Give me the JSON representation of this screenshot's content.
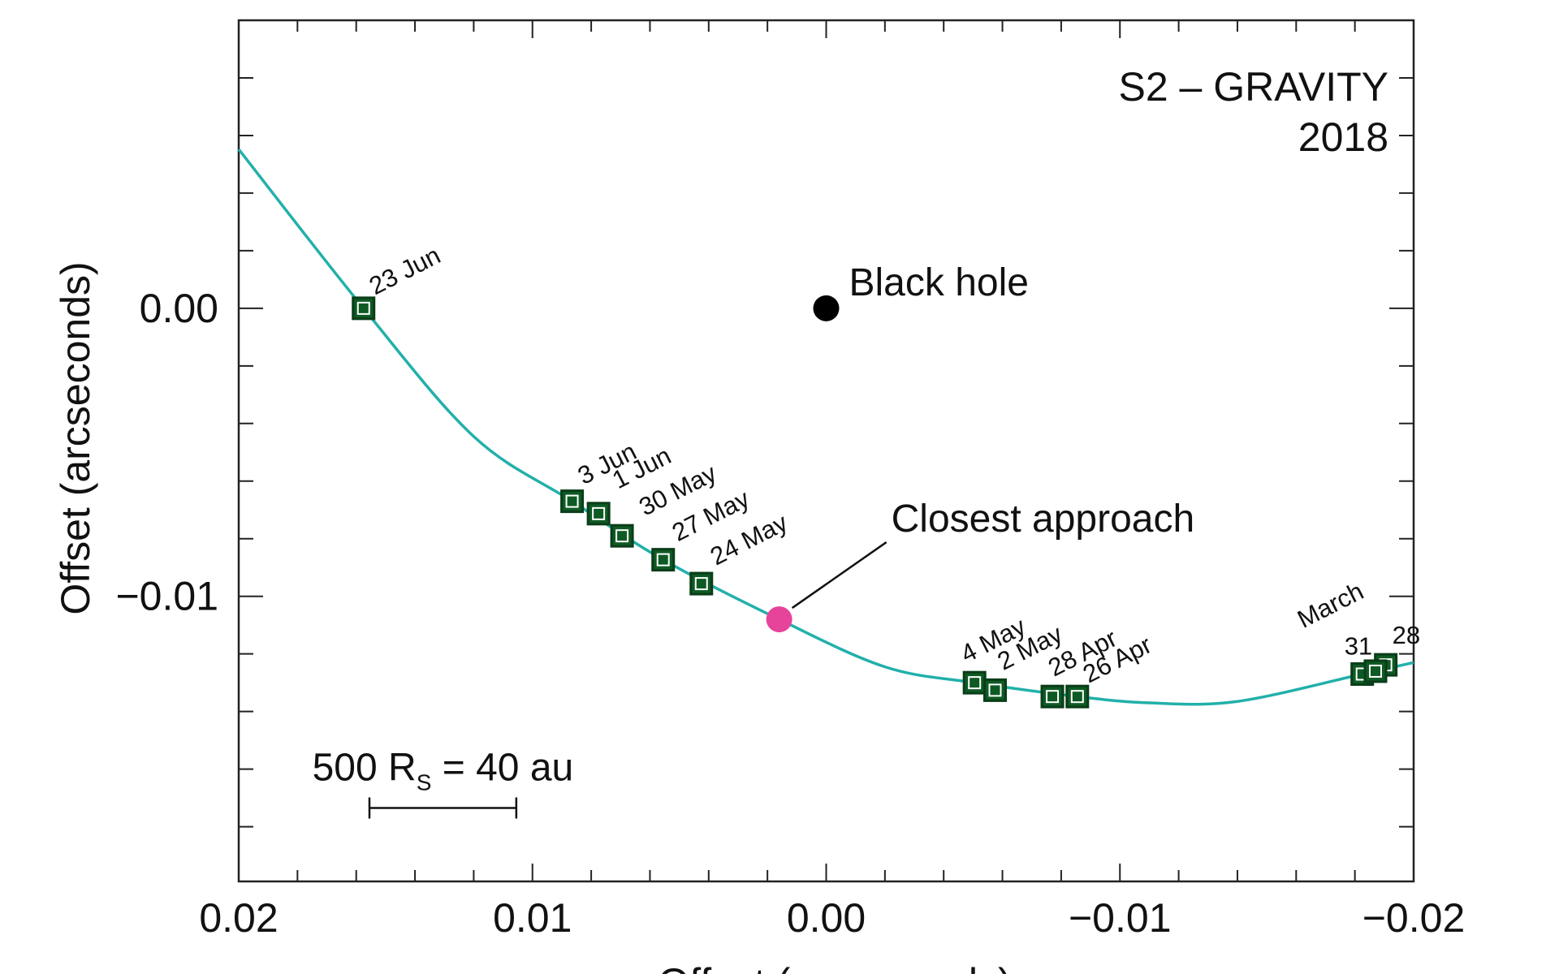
{
  "chart_data": {
    "type": "scatter",
    "title": "S2 – GRAVITY",
    "subtitle": "2018",
    "xlabel": "Offset (arcseconds)",
    "ylabel": "Offset (arcseconds)",
    "xlim": [
      0.02,
      -0.02
    ],
    "ylim": [
      -0.0199,
      0.01
    ],
    "x_inverted": true,
    "grid": false,
    "x_ticks": [
      {
        "value": 0.02,
        "label": "0.02"
      },
      {
        "value": 0.01,
        "label": "0.01"
      },
      {
        "value": 0.0,
        "label": "0.00"
      },
      {
        "value": -0.01,
        "label": "−0.01"
      },
      {
        "value": -0.02,
        "label": "−0.02"
      }
    ],
    "y_ticks": [
      {
        "value": 0.0,
        "label": "0.00"
      },
      {
        "value": -0.01,
        "label": "−0.01"
      }
    ],
    "orbit_color": "#22b0aa",
    "orbit": [
      {
        "x": 0.02,
        "y": 0.00552
      },
      {
        "x": 0.019,
        "y": 0.0033
      },
      {
        "x": 0.018,
        "y": 0.00125
      },
      {
        "x": 0.01575,
        "y": 0.0
      },
      {
        "x": 0.016,
        "y": -0.0024
      },
      {
        "x": 0.014,
        "y": -0.0055
      },
      {
        "x": 0.012,
        "y": -0.008
      },
      {
        "x": 0.01,
        "y": -0.0099
      },
      {
        "x": 0.008,
        "y": -0.0112
      },
      {
        "x": 0.006,
        "y": -0.01205
      },
      {
        "x": 0.004,
        "y": -0.01275
      },
      {
        "x": 0.0016,
        "y": -0.0108
      },
      {
        "x": 0.0,
        "y": -0.0118
      },
      {
        "x": -0.0025,
        "y": -0.0128
      },
      {
        "x": -0.005,
        "y": -0.0132
      },
      {
        "x": -0.008,
        "y": -0.0135
      },
      {
        "x": -0.011,
        "y": -0.0137
      },
      {
        "x": -0.014,
        "y": -0.01365
      },
      {
        "x": -0.017,
        "y": -0.0132
      },
      {
        "x": -0.02,
        "y": -0.0123
      }
    ],
    "observations": [
      {
        "date": "23 Jun",
        "x": 0.01575,
        "y": 0.0
      },
      {
        "date": "3 Jun",
        "x": 0.00865,
        "y": -0.0067
      },
      {
        "date": "1 Jun",
        "x": 0.00775,
        "y": -0.00713
      },
      {
        "date": "30 May",
        "x": 0.00695,
        "y": -0.0079
      },
      {
        "date": "27 May",
        "x": 0.00555,
        "y": -0.00873
      },
      {
        "date": "24 May",
        "x": 0.00425,
        "y": -0.00956
      },
      {
        "date": "4 May",
        "x": -0.00505,
        "y": -0.013
      },
      {
        "date": "2 May",
        "x": -0.00575,
        "y": -0.01326
      },
      {
        "date": "28 Apr",
        "x": -0.0077,
        "y": -0.01348
      },
      {
        "date": "26 Apr",
        "x": -0.00855,
        "y": -0.01348
      },
      {
        "date": "31",
        "x": -0.01825,
        "y": -0.0127
      },
      {
        "date": "28",
        "x": -0.01905,
        "y": -0.01238
      },
      {
        "date": "",
        "x": -0.0187,
        "y": -0.0126
      }
    ],
    "observation_color": "#0e5a24",
    "march_label": "March",
    "black_hole": {
      "label": "Black hole",
      "x": 0.0,
      "y": 0.0,
      "color": "#000000"
    },
    "closest_approach": {
      "label": "Closest approach",
      "x": 0.0016,
      "y": -0.0108,
      "color": "#e6449a"
    },
    "scale_bar": {
      "text_prefix": "500 R",
      "subscript": "S",
      "text_suffix": " = 40 au",
      "x_from": 0.01555,
      "x_to": 0.01055,
      "y": -0.01735
    }
  }
}
